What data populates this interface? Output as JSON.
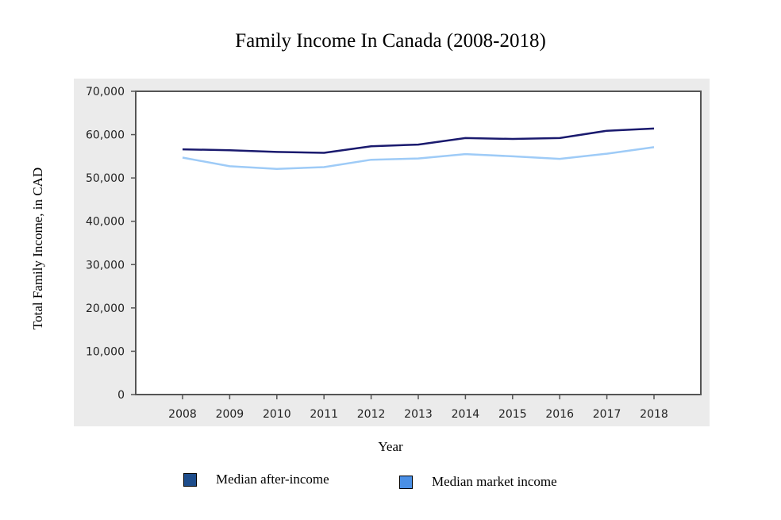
{
  "chart_data": {
    "type": "line",
    "title": "Family Income In Canada (2008-2018)",
    "xlabel": "Year",
    "ylabel": "Total Family Income, in CAD",
    "categories": [
      "2008",
      "2009",
      "2010",
      "2011",
      "2012",
      "2013",
      "2014",
      "2015",
      "2016",
      "2017",
      "2018"
    ],
    "ylim": [
      0,
      70000
    ],
    "yticks": [
      0,
      10000,
      20000,
      30000,
      40000,
      50000,
      60000,
      70000
    ],
    "ytick_labels": [
      "0",
      "10,000",
      "20,000",
      "30,000",
      "40,000",
      "50,000",
      "60,000",
      "70,000"
    ],
    "grid": false,
    "legend_position": "bottom",
    "series": [
      {
        "name": "Median after-income",
        "color": "#1a1a6e",
        "legend_color": "#1e4d8c",
        "values": [
          56600,
          56400,
          56000,
          55800,
          57300,
          57700,
          59200,
          59000,
          59200,
          60900,
          61400
        ]
      },
      {
        "name": "Median market income",
        "color": "#9ecbf7",
        "legend_color": "#4a8fe6",
        "values": [
          54700,
          52700,
          52100,
          52500,
          54200,
          54500,
          55500,
          55000,
          54400,
          55600,
          57100
        ]
      }
    ]
  }
}
